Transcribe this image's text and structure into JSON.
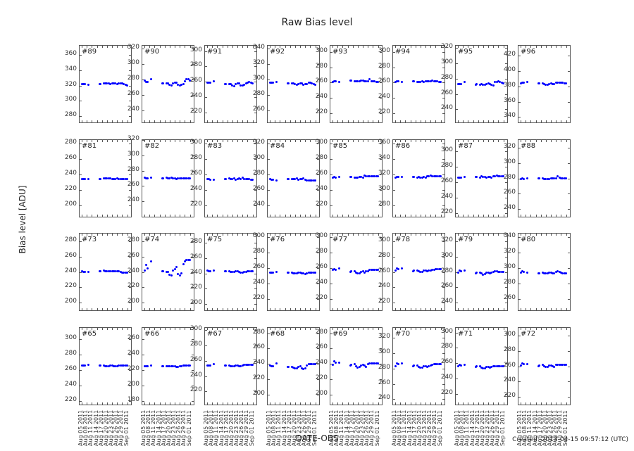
{
  "figure": {
    "title": "Raw Bias level",
    "ylabel": "Bias level [ADU]",
    "xlabel": "DATE-OBS",
    "footer": "Created: 2013-04-15 09:57:12 (UTC)"
  },
  "chart_data": {
    "type": "scatter",
    "title": "Raw Bias level",
    "xlabel": "DATE-OBS",
    "ylabel": "Bias level [ADU]",
    "grid": false,
    "x_tick_labels": [
      "Aug 05 2011",
      "Aug 08 2011",
      "Aug 11 2011",
      "Aug 14 2011",
      "Aug 17 2011",
      "Aug 20 2011",
      "Aug 23 2011",
      "Aug 26 2011",
      "Aug 29 2011",
      "Sep 01 2011"
    ],
    "x_range_days": [
      0,
      28
    ],
    "x_days": [
      0,
      1,
      2,
      4,
      10.5,
      11,
      13,
      14,
      15,
      16,
      17,
      18,
      19,
      20,
      21,
      22,
      23,
      24,
      25,
      26,
      27
    ],
    "panels": [
      {
        "name": "#89",
        "ylim": [
          272,
          372
        ],
        "yticks": [
          280,
          300,
          320,
          340,
          360
        ],
        "values": [
          322,
          322,
          322,
          321,
          322,
          322,
          323,
          323,
          323,
          323,
          322,
          323,
          323,
          323,
          322,
          323,
          323,
          323,
          322,
          321,
          320
        ]
      },
      {
        "name": "#90",
        "ylim": [
          224,
          324
        ],
        "yticks": [
          240,
          260,
          280,
          300,
          320
        ],
        "values": [
          279,
          277,
          277,
          280,
          275,
          275,
          275,
          275,
          273,
          272,
          275,
          276,
          276,
          273,
          272,
          273,
          274,
          278,
          280,
          280,
          279
        ]
      },
      {
        "name": "#91",
        "ylim": [
          207,
          307
        ],
        "yticks": [
          220,
          240,
          260,
          280,
          300
        ],
        "values": [
          259,
          259,
          259,
          261,
          257,
          257,
          257,
          257,
          255,
          254,
          257,
          258,
          258,
          255,
          255,
          256,
          258,
          259,
          260,
          259,
          258
        ]
      },
      {
        "name": "#92",
        "ylim": [
          244,
          344
        ],
        "yticks": [
          260,
          280,
          300,
          320,
          340
        ],
        "values": [
          296,
          296,
          296,
          297,
          295,
          295,
          295,
          295,
          294,
          293,
          294,
          295,
          295,
          293,
          294,
          294,
          296,
          296,
          295,
          294,
          293
        ]
      },
      {
        "name": "#93",
        "ylim": [
          208,
          308
        ],
        "yticks": [
          220,
          240,
          260,
          280,
          300
        ],
        "values": [
          261,
          262,
          262,
          261,
          263,
          263,
          262,
          262,
          262,
          262,
          263,
          263,
          262,
          262,
          262,
          264,
          262,
          262,
          262,
          261,
          261
        ]
      },
      {
        "name": "#94",
        "ylim": [
          208,
          308
        ],
        "yticks": [
          220,
          240,
          260,
          280,
          300
        ],
        "values": [
          261,
          262,
          262,
          261,
          262,
          262,
          261,
          261,
          261,
          262,
          261,
          262,
          262,
          262,
          262,
          263,
          262,
          262,
          262,
          261,
          261
        ]
      },
      {
        "name": "#95",
        "ylim": [
          223,
          323
        ],
        "yticks": [
          240,
          260,
          280,
          300,
          320
        ],
        "values": [
          273,
          273,
          273,
          276,
          272,
          273,
          272,
          273,
          272,
          272,
          273,
          274,
          273,
          272,
          271,
          276,
          276,
          277,
          276,
          275,
          274
        ]
      },
      {
        "name": "#96",
        "ylim": [
          333,
          433
        ],
        "yticks": [
          340,
          360,
          380,
          400,
          420
        ],
        "values": [
          384,
          385,
          385,
          386,
          384,
          384,
          384,
          383,
          382,
          382,
          383,
          384,
          383,
          383,
          385,
          385,
          385,
          385,
          385,
          384,
          384
        ]
      },
      {
        "name": "#81",
        "ylim": [
          185,
          285
        ],
        "yticks": [
          200,
          220,
          240,
          260,
          280
        ],
        "values": [
          234,
          234,
          234,
          234,
          234,
          234,
          235,
          235,
          235,
          235,
          235,
          234,
          234,
          234,
          235,
          234,
          234,
          234,
          234,
          234,
          234
        ]
      },
      {
        "name": "#82",
        "ylim": [
          220,
          320
        ],
        "yticks": [
          240,
          260,
          280,
          300,
          320
        ],
        "values": [
          271,
          270,
          270,
          271,
          270,
          270,
          271,
          270,
          270,
          271,
          270,
          270,
          269,
          270,
          270,
          270,
          270,
          270,
          270,
          270,
          270
        ]
      },
      {
        "name": "#83",
        "ylim": [
          205,
          305
        ],
        "yticks": [
          220,
          240,
          260,
          280,
          300
        ],
        "values": [
          254,
          254,
          253,
          253,
          254,
          254,
          255,
          254,
          254,
          255,
          253,
          254,
          255,
          254,
          256,
          254,
          254,
          254,
          254,
          253,
          253
        ]
      },
      {
        "name": "#84",
        "ylim": [
          225,
          325
        ],
        "yticks": [
          240,
          260,
          280,
          300,
          320
        ],
        "values": [
          274,
          273,
          273,
          272,
          274,
          274,
          274,
          274,
          274,
          275,
          273,
          274,
          274,
          275,
          273,
          272,
          272,
          272,
          272,
          272,
          272
        ]
      },
      {
        "name": "#85",
        "ylim": [
          205,
          305
        ],
        "yticks": [
          220,
          240,
          260,
          280,
          300
        ],
        "values": [
          256,
          257,
          256,
          257,
          257,
          257,
          256,
          256,
          256,
          257,
          257,
          256,
          259,
          258,
          258,
          258,
          258,
          258,
          258,
          258,
          258
        ]
      },
      {
        "name": "#86",
        "ylim": [
          265,
          365
        ],
        "yticks": [
          280,
          300,
          320,
          340,
          360
        ],
        "values": [
          316,
          317,
          317,
          317,
          317,
          317,
          316,
          317,
          316,
          316,
          317,
          316,
          318,
          318,
          319,
          318,
          318,
          318,
          318,
          318,
          318
        ]
      },
      {
        "name": "#87",
        "ylim": [
          215,
          315
        ],
        "yticks": [
          220,
          240,
          260,
          280,
          300
        ],
        "values": [
          266,
          266,
          266,
          267,
          267,
          267,
          266,
          268,
          267,
          267,
          266,
          267,
          267,
          266,
          268,
          268,
          269,
          268,
          268,
          268,
          268
        ]
      },
      {
        "name": "#88",
        "ylim": [
          230,
          330
        ],
        "yticks": [
          240,
          260,
          280,
          300,
          320
        ],
        "values": [
          279,
          280,
          279,
          280,
          280,
          280,
          280,
          279,
          279,
          279,
          279,
          280,
          280,
          280,
          280,
          283,
          281,
          280,
          280,
          280,
          280
        ]
      },
      {
        "name": "#73",
        "ylim": [
          190,
          290
        ],
        "yticks": [
          200,
          220,
          240,
          260,
          280
        ],
        "values": [
          241,
          240,
          240,
          240,
          241,
          241,
          242,
          241,
          241,
          241,
          241,
          241,
          241,
          241,
          241,
          241,
          240,
          239,
          239,
          239,
          239
        ]
      },
      {
        "name": "#74",
        "ylim": [
          190,
          290
        ],
        "yticks": [
          200,
          220,
          240,
          260,
          280
        ],
        "values": [
          242,
          249,
          245,
          254,
          241,
          241,
          240,
          240,
          236,
          235,
          242,
          244,
          246,
          237,
          235,
          238,
          250,
          254,
          256,
          256,
          256
        ]
      },
      {
        "name": "#75",
        "ylim": [
          192,
          292
        ],
        "yticks": [
          200,
          220,
          240,
          260,
          280
        ],
        "values": [
          244,
          243,
          243,
          244,
          243,
          243,
          243,
          242,
          242,
          242,
          243,
          243,
          242,
          241,
          241,
          242,
          242,
          243,
          243,
          243,
          243
        ]
      },
      {
        "name": "#76",
        "ylim": [
          205,
          305
        ],
        "yticks": [
          220,
          240,
          260,
          280,
          300
        ],
        "values": [
          254,
          254,
          254,
          255,
          254,
          254,
          254,
          253,
          253,
          253,
          254,
          254,
          253,
          253,
          252,
          253,
          254,
          254,
          254,
          254,
          254
        ]
      },
      {
        "name": "#77",
        "ylim": [
          205,
          305
        ],
        "yticks": [
          220,
          240,
          260,
          280,
          300
        ],
        "values": [
          258,
          259,
          258,
          260,
          255,
          256,
          256,
          254,
          253,
          253,
          255,
          256,
          254,
          256,
          256,
          258,
          258,
          258,
          258,
          258,
          258
        ]
      },
      {
        "name": "#78",
        "ylim": [
          210,
          310
        ],
        "yticks": [
          220,
          240,
          260,
          280,
          300
        ],
        "values": [
          262,
          265,
          264,
          265,
          261,
          262,
          262,
          261,
          260,
          260,
          262,
          262,
          261,
          262,
          262,
          263,
          263,
          264,
          264,
          264,
          264
        ]
      },
      {
        "name": "#79",
        "ylim": [
          230,
          330
        ],
        "yticks": [
          240,
          260,
          280,
          300,
          320
        ],
        "values": [
          279,
          282,
          281,
          282,
          278,
          279,
          279,
          278,
          276,
          277,
          279,
          279,
          278,
          279,
          280,
          281,
          281,
          280,
          280,
          280,
          280
        ]
      },
      {
        "name": "#80",
        "ylim": [
          245,
          345
        ],
        "yticks": [
          260,
          280,
          300,
          320,
          340
        ],
        "values": [
          294,
          296,
          295,
          294,
          293,
          293,
          294,
          293,
          293,
          293,
          294,
          294,
          293,
          293,
          295,
          296,
          295,
          294,
          293,
          293,
          293
        ]
      },
      {
        "name": "#65",
        "ylim": [
          215,
          315
        ],
        "yticks": [
          220,
          240,
          260,
          280,
          300
        ],
        "values": [
          266,
          266,
          266,
          267,
          266,
          266,
          266,
          265,
          265,
          265,
          266,
          266,
          265,
          265,
          265,
          266,
          266,
          266,
          266,
          266,
          266
        ]
      },
      {
        "name": "#66",
        "ylim": [
          175,
          275
        ],
        "yticks": [
          180,
          200,
          220,
          240,
          260
        ],
        "values": [
          225,
          225,
          225,
          226,
          225,
          225,
          225,
          225,
          225,
          225,
          225,
          225,
          224,
          224,
          225,
          225,
          226,
          226,
          226,
          226,
          226
        ]
      },
      {
        "name": "#67",
        "ylim": [
          203,
          303
        ],
        "yticks": [
          220,
          240,
          260,
          280,
          300
        ],
        "values": [
          254,
          254,
          254,
          256,
          254,
          254,
          254,
          253,
          253,
          253,
          254,
          254,
          253,
          253,
          254,
          255,
          255,
          255,
          255,
          255,
          255
        ]
      },
      {
        "name": "#68",
        "ylim": [
          187,
          287
        ],
        "yticks": [
          200,
          220,
          240,
          260,
          280
        ],
        "values": [
          238,
          237,
          237,
          241,
          236,
          236,
          236,
          235,
          234,
          234,
          236,
          237,
          234,
          233,
          234,
          238,
          240,
          240,
          240,
          240,
          240
        ]
      },
      {
        "name": "#69",
        "ylim": [
          187,
          287
        ],
        "yticks": [
          200,
          220,
          240,
          260,
          280
        ],
        "values": [
          239,
          243,
          242,
          242,
          238,
          239,
          240,
          237,
          235,
          236,
          238,
          239,
          238,
          236,
          240,
          241,
          241,
          241,
          241,
          241,
          241
        ]
      },
      {
        "name": "#70",
        "ylim": [
          233,
          333
        ],
        "yticks": [
          240,
          260,
          280,
          300,
          320
        ],
        "values": [
          283,
          287,
          286,
          287,
          283,
          284,
          284,
          282,
          281,
          281,
          283,
          283,
          282,
          283,
          284,
          285,
          286,
          286,
          286,
          286,
          286
        ]
      },
      {
        "name": "#71",
        "ylim": [
          206,
          306
        ],
        "yticks": [
          220,
          240,
          260,
          280,
          300
        ],
        "values": [
          256,
          258,
          257,
          258,
          255,
          256,
          256,
          254,
          253,
          253,
          255,
          255,
          254,
          255,
          256,
          256,
          256,
          256,
          256,
          256,
          256
        ]
      },
      {
        "name": "#72",
        "ylim": [
          210,
          310
        ],
        "yticks": [
          220,
          240,
          260,
          280,
          300
        ],
        "values": [
          261,
          264,
          263,
          263,
          260,
          261,
          262,
          260,
          259,
          259,
          261,
          261,
          260,
          259,
          262,
          262,
          262,
          262,
          262,
          262,
          262
        ]
      }
    ]
  }
}
